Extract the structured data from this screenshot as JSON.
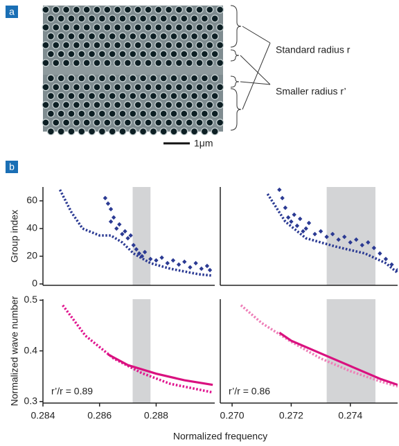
{
  "panel_a": {
    "label": "a",
    "annotations": [
      "Standard radius r",
      "Smaller radius r’"
    ],
    "scale_bar": "1μm"
  },
  "panel_b": {
    "label": "b"
  },
  "chart_data": [
    {
      "type": "line",
      "ylabel": "Group index",
      "xlim": [
        0.284,
        0.29007
      ],
      "ylim": [
        -1,
        70
      ],
      "yticks": [
        0,
        20,
        40,
        60
      ],
      "shade": [
        0.28717,
        0.2878
      ],
      "series": [
        {
          "color": "#2b3a93",
          "style": "dotted",
          "x": [
            0.2846,
            0.285,
            0.2854,
            0.286,
            0.2864,
            0.2868,
            0.2872,
            0.2878,
            0.2885,
            0.2895,
            0.29
          ],
          "values": [
            68,
            52,
            40,
            35,
            35,
            30,
            22,
            15,
            11,
            7,
            6
          ]
        },
        {
          "color": "#2b3a93",
          "style": "markers",
          "x": [
            0.2862,
            0.2863,
            0.2864,
            0.2864,
            0.2865,
            0.2866,
            0.2867,
            0.2868,
            0.2869,
            0.287,
            0.2871,
            0.2872,
            0.2873,
            0.2874,
            0.2875,
            0.2876,
            0.2878,
            0.288,
            0.2882,
            0.2884,
            0.2886,
            0.2888,
            0.289,
            0.2892,
            0.2894,
            0.2896,
            0.2898,
            0.2899
          ],
          "values": [
            62,
            58,
            54,
            45,
            48,
            40,
            43,
            36,
            38,
            33,
            35,
            28,
            25,
            22,
            20,
            23,
            18,
            17,
            19,
            15,
            17,
            14,
            16,
            12,
            15,
            11,
            13,
            10
          ]
        }
      ]
    },
    {
      "type": "line",
      "xlim": [
        0.2696,
        0.2756
      ],
      "ylim": [
        -1,
        70
      ],
      "shade": [
        0.2732,
        0.27485
      ],
      "series": [
        {
          "color": "#2b3a93",
          "style": "dotted",
          "x": [
            0.2712,
            0.2718,
            0.2725,
            0.2735,
            0.2745,
            0.2752,
            0.2756
          ],
          "values": [
            65,
            45,
            33,
            27,
            22,
            15,
            8
          ]
        },
        {
          "color": "#2b3a93",
          "style": "markers",
          "x": [
            0.2716,
            0.2717,
            0.2718,
            0.2719,
            0.272,
            0.2721,
            0.2722,
            0.2723,
            0.2724,
            0.2725,
            0.2726,
            0.2728,
            0.273,
            0.2732,
            0.2734,
            0.2736,
            0.2738,
            0.274,
            0.2742,
            0.2744,
            0.2746,
            0.2748,
            0.275,
            0.2752,
            0.2754,
            0.2756
          ],
          "values": [
            68,
            62,
            55,
            48,
            45,
            50,
            42,
            47,
            38,
            40,
            44,
            36,
            38,
            34,
            36,
            32,
            34,
            30,
            32,
            28,
            30,
            26,
            22,
            18,
            14,
            10
          ]
        }
      ]
    },
    {
      "type": "line",
      "ylabel": "Normalized wave number",
      "xlabel": "Normalized frequency",
      "annotation": "r’/r = 0.89",
      "xlim": [
        0.284,
        0.29007
      ],
      "ylim": [
        0.297,
        0.502
      ],
      "xticks": [
        0.284,
        0.286,
        0.288
      ],
      "yticks": [
        0.3,
        0.4,
        0.5
      ],
      "shade": [
        0.28717,
        0.2878
      ],
      "series": [
        {
          "color": "#e0158f",
          "style": "dotted",
          "x": [
            0.2847,
            0.2855,
            0.2865,
            0.2875,
            0.2885,
            0.29
          ],
          "values": [
            0.49,
            0.43,
            0.385,
            0.356,
            0.335,
            0.318
          ]
        },
        {
          "color": "#d9117f",
          "style": "solid",
          "x": [
            0.2863,
            0.287,
            0.288,
            0.289,
            0.29
          ],
          "values": [
            0.393,
            0.372,
            0.355,
            0.342,
            0.333
          ]
        }
      ]
    },
    {
      "type": "line",
      "annotation": "r’/r = 0.86",
      "xlim": [
        0.2696,
        0.2756
      ],
      "ylim": [
        0.297,
        0.502
      ],
      "xticks": [
        {
          "value": 0.27,
          "label": "0.270"
        },
        0.272,
        0.274
      ],
      "shade": [
        0.2732,
        0.27485
      ],
      "series": [
        {
          "color": "#ee7fb8",
          "style": "dotted",
          "x": [
            0.2703,
            0.271,
            0.272,
            0.273,
            0.274,
            0.275,
            0.2756
          ],
          "values": [
            0.49,
            0.455,
            0.418,
            0.385,
            0.36,
            0.34,
            0.33
          ]
        },
        {
          "color": "#d9117f",
          "style": "solid",
          "x": [
            0.2716,
            0.272,
            0.273,
            0.274,
            0.275,
            0.2756
          ],
          "values": [
            0.436,
            0.42,
            0.395,
            0.37,
            0.345,
            0.333
          ]
        }
      ]
    }
  ]
}
